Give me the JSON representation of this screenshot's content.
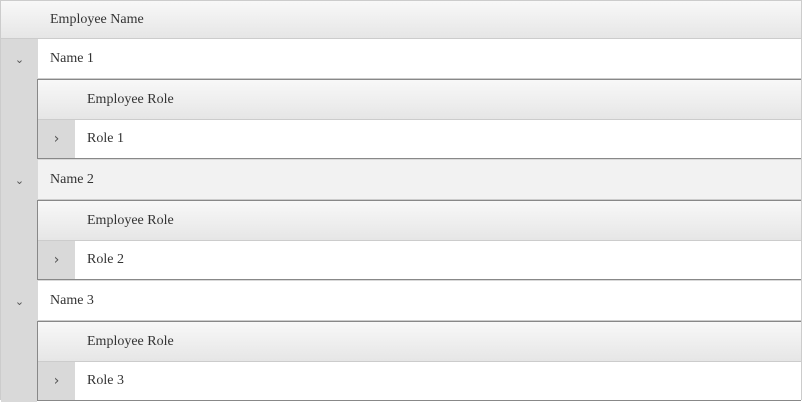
{
  "grid": {
    "header": "Employee Name",
    "rows": [
      {
        "name": "Name 1",
        "expanded": true,
        "detail": {
          "header": "Employee Role",
          "role": "Role 1",
          "expanded": false
        }
      },
      {
        "name": "Name 2",
        "expanded": true,
        "detail": {
          "header": "Employee Role",
          "role": "Role 2",
          "expanded": false
        }
      },
      {
        "name": "Name 3",
        "expanded": true,
        "detail": {
          "header": "Employee Role",
          "role": "Role 3",
          "expanded": false
        }
      }
    ]
  }
}
